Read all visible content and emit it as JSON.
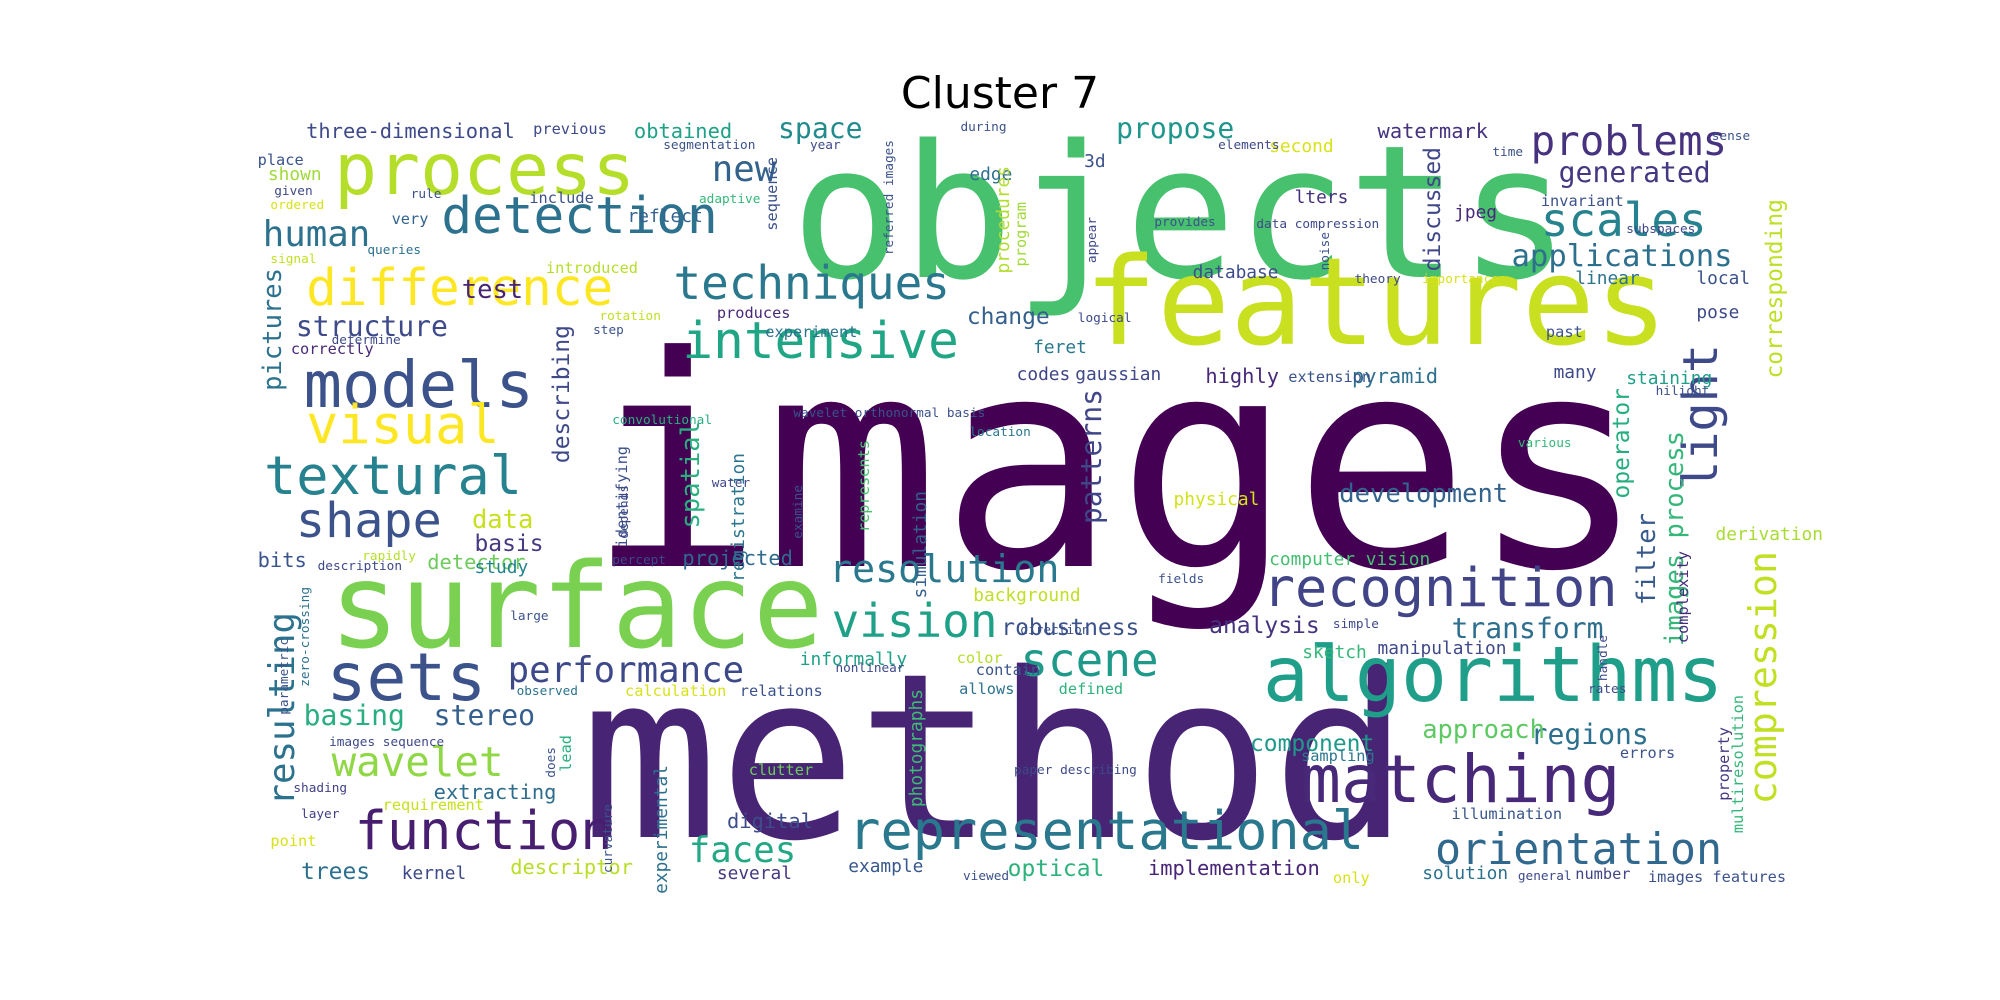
{
  "title": "Cluster 7",
  "words": [
    {
      "t": "images",
      "c": "#440154"
    },
    {
      "t": "objects",
      "c": "#47c16e"
    },
    {
      "t": "method",
      "c": "#482475"
    },
    {
      "t": "features",
      "c": "#c8e020"
    },
    {
      "t": "surface",
      "c": "#7ad151"
    },
    {
      "t": "process",
      "c": "#b5de2b"
    },
    {
      "t": "models",
      "c": "#3b528b"
    },
    {
      "t": "algorithms",
      "c": "#1f9e89"
    },
    {
      "t": "matching",
      "c": "#482878"
    },
    {
      "t": "representational",
      "c": "#2a788e"
    },
    {
      "t": "recognition",
      "c": "#414487"
    },
    {
      "t": "intensive",
      "c": "#21a685"
    },
    {
      "t": "detection",
      "c": "#2c728e"
    },
    {
      "t": "difference",
      "c": "#fde725"
    },
    {
      "t": "textural",
      "c": "#26828e"
    },
    {
      "t": "function",
      "c": "#481f70"
    },
    {
      "t": "techniques",
      "c": "#2a788e"
    },
    {
      "t": "visual",
      "c": "#fde725"
    },
    {
      "t": "sets",
      "c": "#3b528b"
    },
    {
      "t": "shape",
      "c": "#3b528b"
    },
    {
      "t": "vision",
      "c": "#1fa187"
    },
    {
      "t": "scene",
      "c": "#1f9a8a"
    },
    {
      "t": "light",
      "c": "#3e4989"
    },
    {
      "t": "scales",
      "c": "#26828e"
    },
    {
      "t": "problems",
      "c": "#46327e"
    },
    {
      "t": "orientation",
      "c": "#31688e"
    },
    {
      "t": "compression",
      "c": "#c2df23"
    },
    {
      "t": "resulting",
      "c": "#2c728e"
    },
    {
      "t": "wavelet",
      "c": "#8fd744"
    },
    {
      "t": "resolution",
      "c": "#2a788e"
    },
    {
      "t": "performance",
      "c": "#3e4989"
    },
    {
      "t": "faces",
      "c": "#22a884"
    },
    {
      "t": "human",
      "c": "#2c728e"
    },
    {
      "t": "new",
      "c": "#33638d"
    },
    {
      "t": "space",
      "c": "#228b8d"
    },
    {
      "t": "propose",
      "c": "#1f968b"
    },
    {
      "t": "generated",
      "c": "#453781"
    },
    {
      "t": "applications",
      "c": "#2d708e"
    },
    {
      "t": "pictures",
      "c": "#2c728e"
    },
    {
      "t": "structure",
      "c": "#3e4a89"
    },
    {
      "t": "transform",
      "c": "#2e6e8e"
    },
    {
      "t": "regions",
      "c": "#2d708e"
    },
    {
      "t": "images process",
      "c": "#35b779"
    },
    {
      "t": "filter",
      "c": "#38598c"
    },
    {
      "t": "patterns",
      "c": "#404688"
    },
    {
      "t": "describing",
      "c": "#3e4989"
    },
    {
      "t": "stereo",
      "c": "#355f8d"
    },
    {
      "t": "basing",
      "c": "#29af7f"
    },
    {
      "t": "development",
      "c": "#33638d"
    },
    {
      "t": "robustness",
      "c": "#3b528b"
    },
    {
      "t": "analysis",
      "c": "#46337e"
    },
    {
      "t": "approach",
      "c": "#5ec962"
    },
    {
      "t": "component",
      "c": "#1f9a8a"
    },
    {
      "t": "discussed",
      "c": "#3f4788"
    },
    {
      "t": "corresponding",
      "c": "#bddf26"
    },
    {
      "t": "data",
      "c": "#c8e020"
    },
    {
      "t": "test",
      "c": "#482475"
    },
    {
      "t": "change",
      "c": "#35608d"
    },
    {
      "t": "spatial",
      "c": "#2ab07f"
    },
    {
      "t": "operator",
      "c": "#26ad81"
    },
    {
      "t": "basis",
      "c": "#443a83"
    },
    {
      "t": "three-dimensional",
      "c": "#3e4a89"
    },
    {
      "t": "obtained",
      "c": "#1fa188"
    },
    {
      "t": "watermark",
      "c": "#46327e"
    },
    {
      "t": "trees",
      "c": "#2d708e"
    },
    {
      "t": "extracting",
      "c": "#2e6d8e"
    },
    {
      "t": "bits",
      "c": "#3a548c"
    },
    {
      "t": "detector",
      "c": "#6ccd5a"
    },
    {
      "t": "projected",
      "c": "#30698e"
    },
    {
      "t": "digital",
      "c": "#3d4d8a"
    },
    {
      "t": "pyramid",
      "c": "#2d708e"
    },
    {
      "t": "highly",
      "c": "#482878"
    },
    {
      "t": "codes",
      "c": "#404588"
    },
    {
      "t": "gaussian",
      "c": "#3f4889"
    },
    {
      "t": "edge",
      "c": "#2e6f8e"
    },
    {
      "t": "lters",
      "c": "#46307e"
    },
    {
      "t": "jpeg",
      "c": "#482878"
    },
    {
      "t": "study",
      "c": "#25838e"
    },
    {
      "t": "reflect",
      "c": "#33638d"
    },
    {
      "t": "database",
      "c": "#3d4d8a"
    },
    {
      "t": "descriptor",
      "c": "#b8de29"
    },
    {
      "t": "implementation",
      "c": "#482576"
    },
    {
      "t": "optical",
      "c": "#2db27d"
    },
    {
      "t": "solution",
      "c": "#2c718e"
    },
    {
      "t": "kernel",
      "c": "#3e4989"
    },
    {
      "t": "several",
      "c": "#453882"
    },
    {
      "t": "example",
      "c": "#38588c"
    },
    {
      "t": "number",
      "c": "#414487"
    },
    {
      "t": "staining",
      "c": "#1f9f88"
    },
    {
      "t": "manipulation",
      "c": "#3e4989"
    },
    {
      "t": "registration",
      "c": "#2a768e"
    },
    {
      "t": "identifying",
      "c": "#3b528b"
    },
    {
      "t": "simulation",
      "c": "#34618d"
    },
    {
      "t": "photographs",
      "c": "#3dbc74"
    },
    {
      "t": "represents",
      "c": "#48c16e"
    },
    {
      "t": "sequence",
      "c": "#3b528b"
    },
    {
      "t": "procedures",
      "c": "#b2dd2d"
    },
    {
      "t": "program",
      "c": "#a0da39"
    },
    {
      "t": "experimental",
      "c": "#2d708e"
    },
    {
      "t": "computer vision",
      "c": "#44bf70"
    },
    {
      "t": "physical",
      "c": "#d2e21b"
    },
    {
      "t": "background",
      "c": "#c0df25"
    },
    {
      "t": "complexity",
      "c": "#472c7a"
    },
    {
      "t": "property",
      "c": "#453882"
    },
    {
      "t": "derivation",
      "c": "#a8db34"
    },
    {
      "t": "sketch",
      "c": "#35b779"
    },
    {
      "t": "sampling",
      "c": "#2a768e"
    },
    {
      "t": "illumination",
      "c": "#39568c"
    },
    {
      "t": "informally",
      "c": "#1fa088"
    },
    {
      "t": "color",
      "c": "#b5de2b"
    },
    {
      "t": "allows",
      "c": "#2c728e"
    },
    {
      "t": "contain",
      "c": "#3a548c"
    },
    {
      "t": "defined",
      "c": "#2db27d"
    },
    {
      "t": "calculation",
      "c": "#d8e219"
    },
    {
      "t": "relations",
      "c": "#3b528b"
    },
    {
      "t": "lead",
      "c": "#2ab07f"
    },
    {
      "t": "clutter",
      "c": "#6ccd5a"
    },
    {
      "t": "requirement",
      "c": "#c8e020"
    },
    {
      "t": "shading",
      "c": "#424086"
    },
    {
      "t": "layer",
      "c": "#424086"
    },
    {
      "t": "point",
      "c": "#d8e219"
    },
    {
      "t": "place",
      "c": "#3b528b"
    },
    {
      "t": "shown",
      "c": "#9fda3a"
    },
    {
      "t": "given",
      "c": "#3e4989"
    },
    {
      "t": "ordered",
      "c": "#d8e219"
    },
    {
      "t": "signal",
      "c": "#c2df23"
    },
    {
      "t": "queries",
      "c": "#2d708e"
    },
    {
      "t": "rule",
      "c": "#3b528b"
    },
    {
      "t": "very",
      "c": "#33638d"
    },
    {
      "t": "include",
      "c": "#3b528b"
    },
    {
      "t": "introduced",
      "c": "#b5de2b"
    },
    {
      "t": "correctly",
      "c": "#482878"
    },
    {
      "t": "determine",
      "c": "#3e4989"
    },
    {
      "t": "rotation",
      "c": "#c2df23"
    },
    {
      "t": "experiment",
      "c": "#2c728e"
    },
    {
      "t": "produces",
      "c": "#482878"
    },
    {
      "t": "convolutional",
      "c": "#29af7f"
    },
    {
      "t": "wavelet orthonormal basis",
      "c": "#3b528b"
    },
    {
      "t": "location",
      "c": "#2a788e"
    },
    {
      "t": "percept",
      "c": "#3e4989"
    },
    {
      "t": "zero-crossing",
      "c": "#2c728e"
    },
    {
      "t": "parametric",
      "c": "#3b528b"
    },
    {
      "t": "description",
      "c": "#3e4989"
    },
    {
      "t": "rapidly",
      "c": "#b5de2b"
    },
    {
      "t": "large",
      "c": "#3b528b"
    },
    {
      "t": "observed",
      "c": "#2c728e"
    },
    {
      "t": "images sequence",
      "c": "#3e4989"
    },
    {
      "t": "second",
      "c": "#d8e219"
    },
    {
      "t": "3d",
      "c": "#3b528b"
    },
    {
      "t": "previous",
      "c": "#3e4989"
    },
    {
      "t": "segmentation",
      "c": "#3b528b"
    },
    {
      "t": "year",
      "c": "#3e4989"
    },
    {
      "t": "referred images",
      "c": "#3b528b"
    },
    {
      "t": "adaptive",
      "c": "#35b779"
    },
    {
      "t": "during",
      "c": "#3b528b"
    },
    {
      "t": "elements",
      "c": "#3e4989"
    },
    {
      "t": "provides",
      "c": "#3b528b"
    },
    {
      "t": "data compression",
      "c": "#3e4989"
    },
    {
      "t": "time",
      "c": "#3b528b"
    },
    {
      "t": "subspaces",
      "c": "#3e4989"
    },
    {
      "t": "invariant",
      "c": "#3b528b"
    },
    {
      "t": "linear",
      "c": "#2c728e"
    },
    {
      "t": "local",
      "c": "#3b528b"
    },
    {
      "t": "theory",
      "c": "#3e4989"
    },
    {
      "t": "importance",
      "c": "#d8e219"
    },
    {
      "t": "noise",
      "c": "#3b528b"
    },
    {
      "t": "appear",
      "c": "#3e4989"
    },
    {
      "t": "feret",
      "c": "#2a788e"
    },
    {
      "t": "extension",
      "c": "#3b528b"
    },
    {
      "t": "many",
      "c": "#3e4989"
    },
    {
      "t": "past",
      "c": "#3b528b"
    },
    {
      "t": "pose",
      "c": "#3e4989"
    },
    {
      "t": "hilight",
      "c": "#3b528b"
    },
    {
      "t": "various",
      "c": "#35b779"
    },
    {
      "t": "fields",
      "c": "#3b528b"
    },
    {
      "t": "simple",
      "c": "#3e4989"
    },
    {
      "t": "direction",
      "c": "#3b528b"
    },
    {
      "t": "handle",
      "c": "#3e4989"
    },
    {
      "t": "errors",
      "c": "#3b528b"
    },
    {
      "t": "rates",
      "c": "#3e4989"
    },
    {
      "t": "multiresolution",
      "c": "#35b779"
    },
    {
      "t": "curvature",
      "c": "#3b528b"
    },
    {
      "t": "paper describing",
      "c": "#3e4989"
    },
    {
      "t": "viewed",
      "c": "#3b528b"
    },
    {
      "t": "general",
      "c": "#3e4989"
    },
    {
      "t": "only",
      "c": "#d8e219"
    },
    {
      "t": "images features",
      "c": "#3b528b"
    },
    {
      "t": "water",
      "c": "#3e4989"
    },
    {
      "t": "step",
      "c": "#3b528b"
    },
    {
      "t": "logical",
      "c": "#3e4989"
    },
    {
      "t": "examine",
      "c": "#3b528b"
    },
    {
      "t": "depends",
      "c": "#3e4989"
    },
    {
      "t": "does",
      "c": "#3b528b"
    },
    {
      "t": "nonlinear",
      "c": "#3e4989"
    },
    {
      "t": "sense",
      "c": "#3b528b"
    }
  ]
}
